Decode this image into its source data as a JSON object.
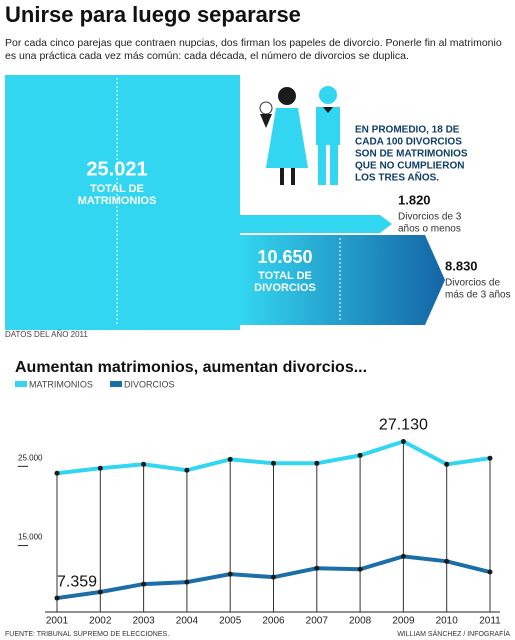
{
  "header": {
    "title": "Unirse para luego separarse",
    "subtitle": [
      "Por cada cinco parejas que contraen nupcias, dos firman los papeles de divorcio. Ponerle fin al matrimonio",
      "es una práctica cada vez más común: cada década, el número de divorcios se duplica."
    ]
  },
  "infographic": {
    "marriages": {
      "number": "25.021",
      "label": [
        "TOTAL DE",
        "MATRIMONIOS"
      ]
    },
    "divorces": {
      "number": "10.650",
      "label": [
        "TOTAL DE",
        "DIVORCIOS"
      ]
    },
    "short": {
      "number": "1.820",
      "label": [
        "Divorcios de 3",
        "años o menos"
      ]
    },
    "long": {
      "number": "8.830",
      "label": [
        "Divorcios de",
        "más de 3 años"
      ]
    },
    "note": [
      "EN PROMEDIO, 18 DE",
      "CADA 100 DIVORCIOS",
      "SON DE MATRIMONIOS",
      "QUE NO CUMPLIERON",
      "LOS TRES AÑOS."
    ],
    "data_note": "DATOS DEL AÑO 2011"
  },
  "chart_data": {
    "type": "line",
    "title": "Aumentan matrimonios, aumentan divorcios...",
    "x": [
      "2001",
      "2002",
      "2003",
      "2004",
      "2005",
      "2006",
      "2007",
      "2008",
      "2009",
      "2010",
      "2011"
    ],
    "series": [
      {
        "name": "MATRIMONIOS",
        "color": "#33d6f0",
        "values": [
          23125,
          23750,
          24250,
          23500,
          24875,
          24375,
          24375,
          25375,
          27130,
          24250,
          25021
        ],
        "value_labels": [
          null,
          null,
          null,
          null,
          null,
          null,
          null,
          null,
          "27.130",
          null,
          null
        ]
      },
      {
        "name": "DIVORCIOS",
        "color": "#1b6fa8",
        "values": [
          7359,
          8125,
          9125,
          9375,
          10375,
          10000,
          11125,
          11000,
          12625,
          12000,
          10650
        ],
        "value_labels": [
          "7.359",
          null,
          null,
          null,
          null,
          null,
          null,
          null,
          null,
          null,
          null
        ]
      }
    ],
    "ylim": [
      5600,
      33000
    ],
    "yticks": [
      {
        "value": 15000,
        "label": "15.000"
      },
      {
        "value": 25000,
        "label": "25.000"
      }
    ]
  },
  "footer": {
    "source": "FUENTE: TRIBUNAL SUPREMO DE ELECCIONES.",
    "credit": "WILLIAM SÁNCHEZ / INFOGRAFÍA"
  }
}
